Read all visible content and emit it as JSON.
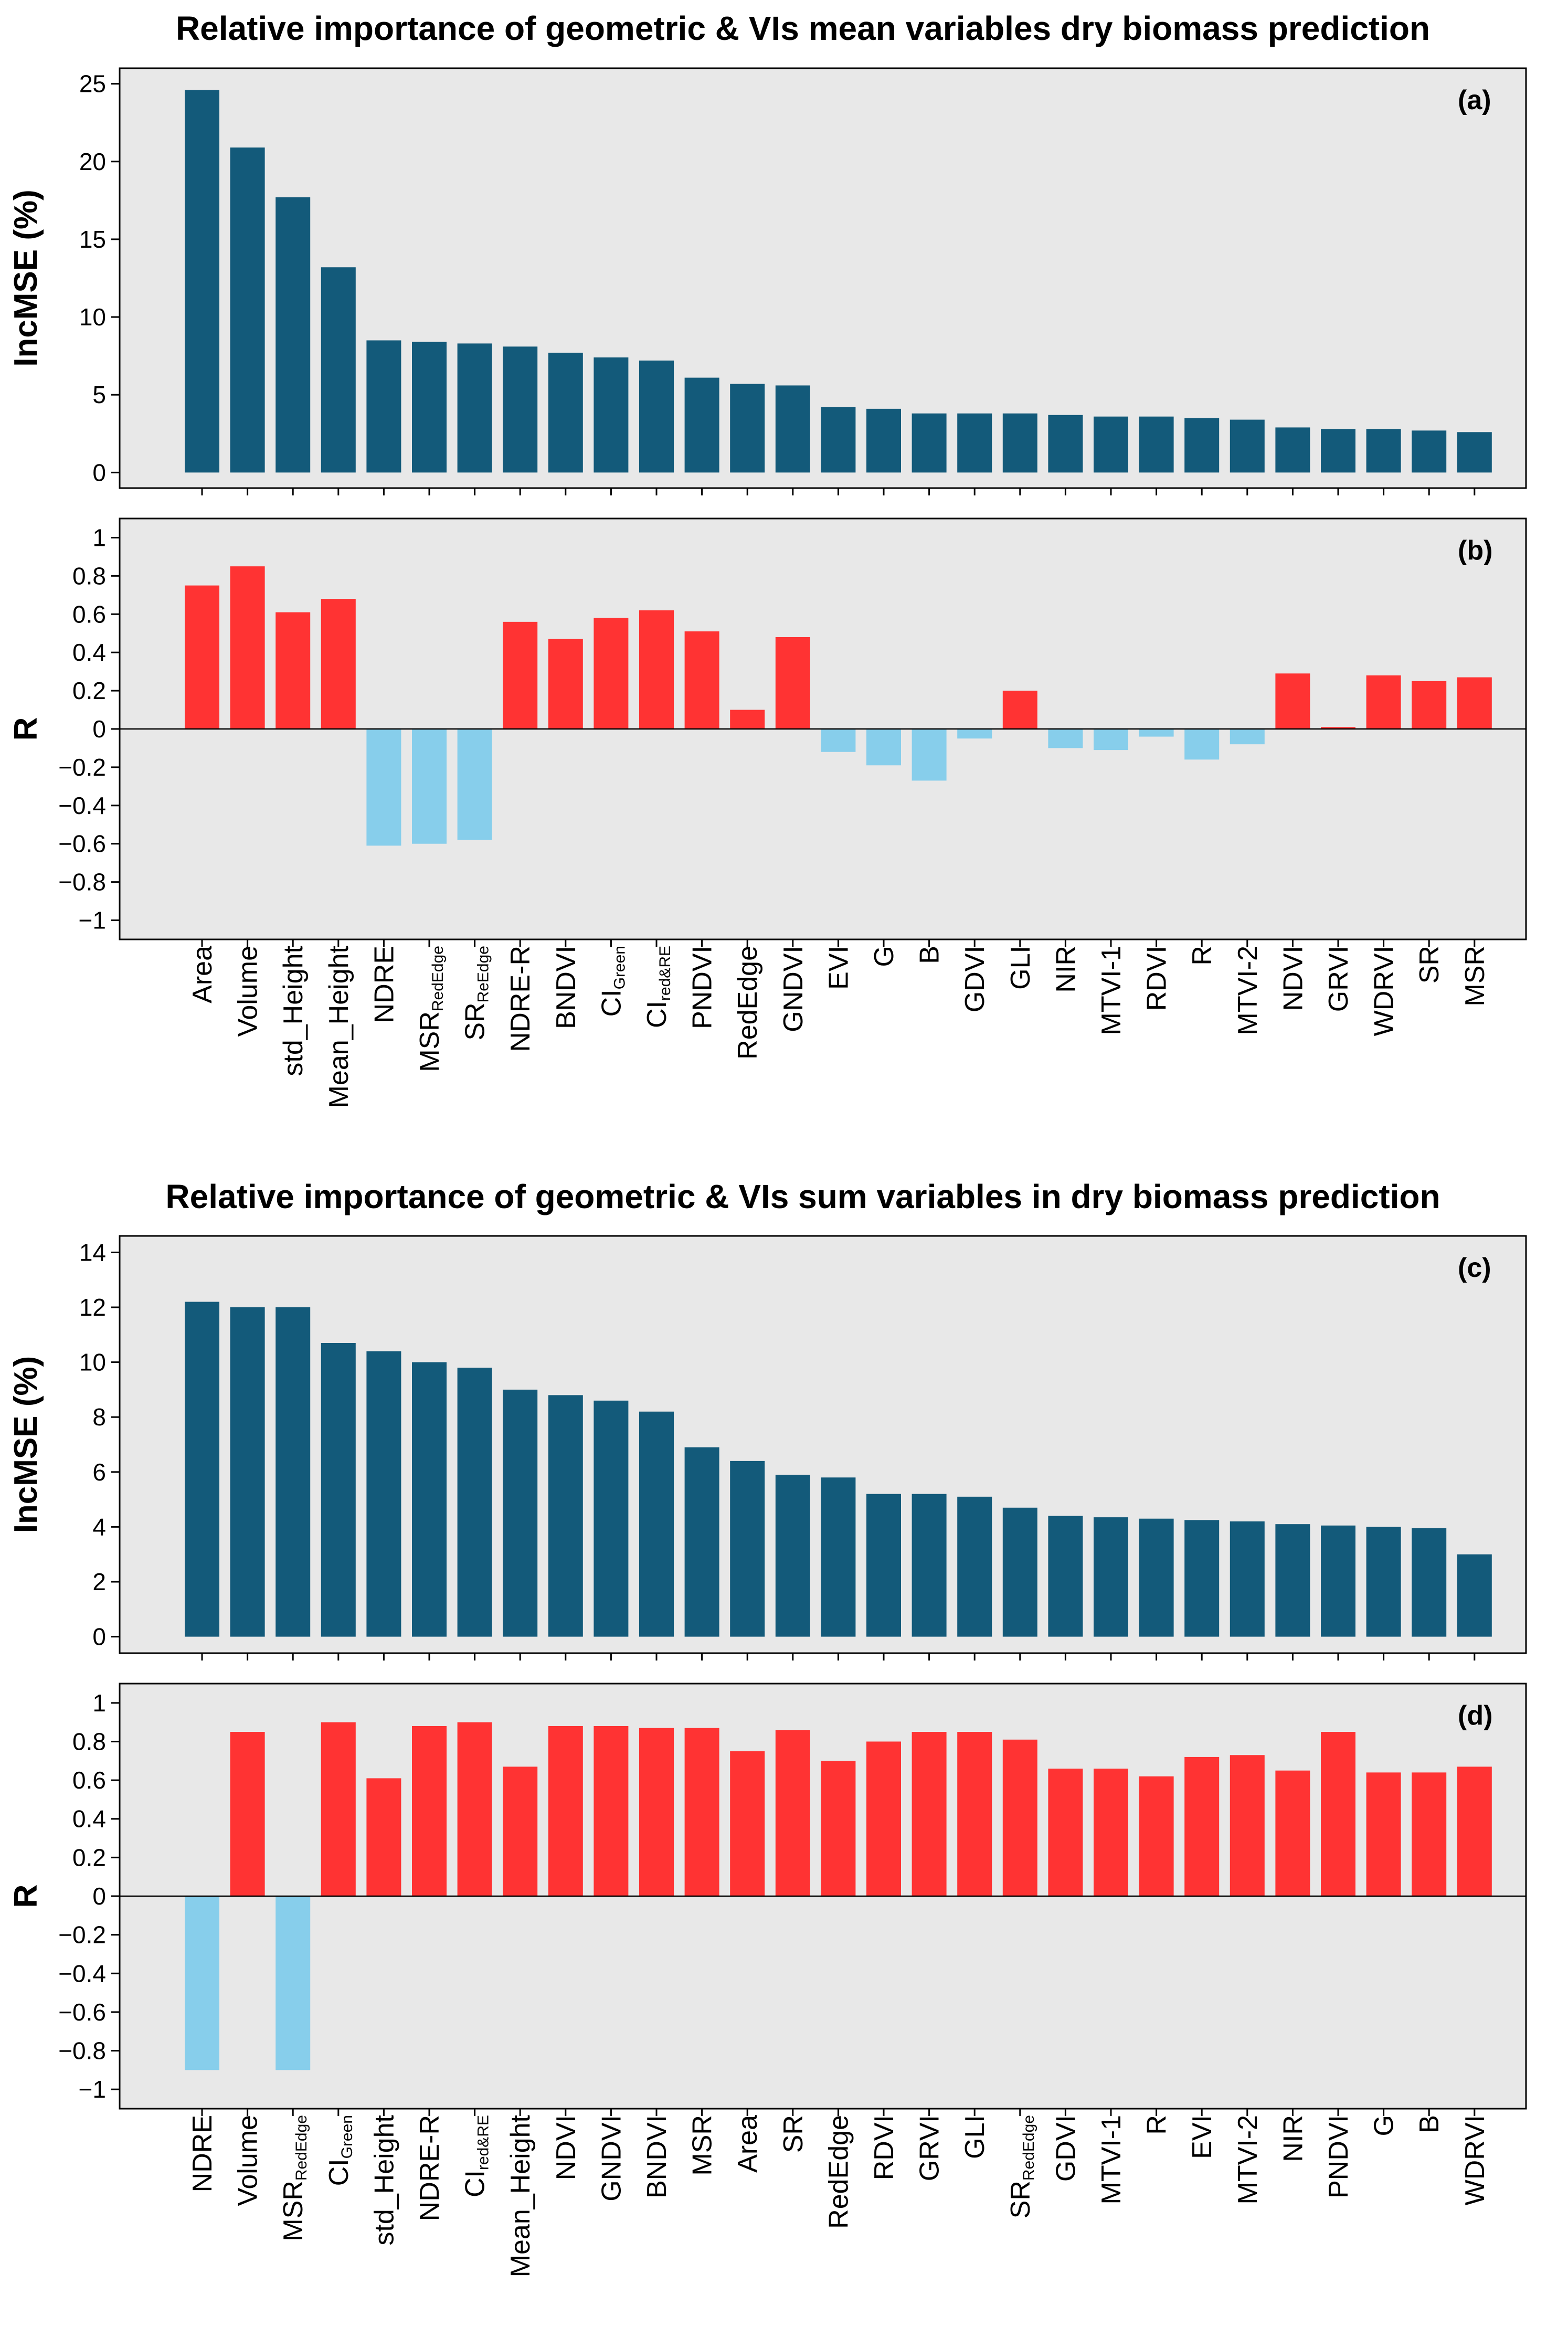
{
  "colors": {
    "importance_bar": "#135a7a",
    "positive_r": "#ff3333",
    "negative_r": "#87ceeb",
    "plot_background": "#e8e8e8"
  },
  "chart_data": [
    {
      "id": "a",
      "type": "bar",
      "title": "Relative importance of geometric & VIs mean variables dry biomass prediction",
      "panel_label": "(a)",
      "ylabel": "IncMSE (%)",
      "xlabel": "",
      "ylim": [
        -1,
        26
      ],
      "yticks": [
        0,
        5,
        10,
        15,
        20,
        25
      ],
      "ytick_labels": [
        "0",
        "5",
        "10",
        "15",
        "20",
        "25"
      ],
      "grid": false,
      "categories": [
        "Area",
        "Volume",
        "std_Height",
        "Mean_Height",
        "NDRE",
        "MSR_RedEdge",
        "SR_ReEdge",
        "NDRE-R",
        "BNDVI",
        "CI_Green",
        "CI_red&RE",
        "PNDVI",
        "RedEdge",
        "GNDVI",
        "EVI",
        "G",
        "B",
        "GDVI",
        "GLI",
        "NIR",
        "MTVI-1",
        "RDVI",
        "R",
        "MTVI-2",
        "NDVI",
        "GRVI",
        "WDRVI",
        "SR",
        "MSR"
      ],
      "category_labels": [
        {
          "main": "Area",
          "sub": ""
        },
        {
          "main": "Volume",
          "sub": ""
        },
        {
          "main": "std_Height",
          "sub": ""
        },
        {
          "main": "Mean_Height",
          "sub": ""
        },
        {
          "main": "NDRE",
          "sub": ""
        },
        {
          "main": "MSR",
          "sub": "RedEdge"
        },
        {
          "main": "SR",
          "sub": "ReEdge"
        },
        {
          "main": "NDRE-R",
          "sub": ""
        },
        {
          "main": "BNDVI",
          "sub": ""
        },
        {
          "main": "CI",
          "sub": "Green"
        },
        {
          "main": "CI",
          "sub": "red&RE"
        },
        {
          "main": "PNDVI",
          "sub": ""
        },
        {
          "main": "RedEdge",
          "sub": ""
        },
        {
          "main": "GNDVI",
          "sub": ""
        },
        {
          "main": "EVI",
          "sub": ""
        },
        {
          "main": "G",
          "sub": ""
        },
        {
          "main": "B",
          "sub": ""
        },
        {
          "main": "GDVI",
          "sub": ""
        },
        {
          "main": "GLI",
          "sub": ""
        },
        {
          "main": "NIR",
          "sub": ""
        },
        {
          "main": "MTVI-1",
          "sub": ""
        },
        {
          "main": "RDVI",
          "sub": ""
        },
        {
          "main": "R",
          "sub": ""
        },
        {
          "main": "MTVI-2",
          "sub": ""
        },
        {
          "main": "NDVI",
          "sub": ""
        },
        {
          "main": "GRVI",
          "sub": ""
        },
        {
          "main": "WDRVI",
          "sub": ""
        },
        {
          "main": "SR",
          "sub": ""
        },
        {
          "main": "MSR",
          "sub": ""
        }
      ],
      "values": [
        24.6,
        20.9,
        17.7,
        13.2,
        8.5,
        8.4,
        8.3,
        8.1,
        7.7,
        7.4,
        7.2,
        6.1,
        5.7,
        5.6,
        4.2,
        4.1,
        3.8,
        3.8,
        3.8,
        3.7,
        3.6,
        3.6,
        3.5,
        3.4,
        2.9,
        2.8,
        2.8,
        2.7,
        2.6
      ]
    },
    {
      "id": "b",
      "type": "bar",
      "panel_label": "(b)",
      "ylabel": "R",
      "xlabel": "",
      "ylim": [
        -1.1,
        1.1
      ],
      "yticks": [
        -1,
        -0.8,
        -0.6,
        -0.4,
        -0.2,
        0,
        0.2,
        0.4,
        0.6,
        0.8,
        1
      ],
      "ytick_labels": [
        "−1",
        "−0.8",
        "−0.6",
        "−0.4",
        "−0.2",
        "0",
        "0.2",
        "0.4",
        "0.6",
        "0.8",
        "1"
      ],
      "zero_line": true,
      "grid": false,
      "shares_categories_with": "a",
      "values": [
        0.75,
        0.85,
        0.61,
        0.68,
        -0.61,
        -0.6,
        -0.58,
        0.56,
        0.47,
        0.58,
        0.62,
        0.51,
        0.1,
        0.48,
        -0.12,
        -0.19,
        -0.27,
        -0.05,
        0.2,
        -0.1,
        -0.11,
        -0.04,
        -0.16,
        -0.08,
        0.29,
        0.01,
        0.28,
        0.25,
        0.27
      ]
    },
    {
      "id": "c",
      "type": "bar",
      "title": "Relative importance of geometric & VIs sum variables in dry biomass prediction",
      "panel_label": "(c)",
      "ylabel": "IncMSE (%)",
      "xlabel": "",
      "ylim": [
        -0.6,
        14.6
      ],
      "yticks": [
        0,
        2,
        4,
        6,
        8,
        10,
        12,
        14
      ],
      "ytick_labels": [
        "0",
        "2",
        "4",
        "6",
        "8",
        "10",
        "12",
        "14"
      ],
      "grid": false,
      "categories": [
        "NDRE",
        "Volume",
        "MSR_RedEdge",
        "CI_Green",
        "std_Height",
        "NDRE-R",
        "CI_red&RE",
        "Mean_Height",
        "NDVI",
        "GNDVI",
        "BNDVI",
        "MSR",
        "Area",
        "SR",
        "RedEdge",
        "RDVI",
        "GRVI",
        "GLI",
        "SR_RedEdge",
        "GDVI",
        "MTVI-1",
        "R",
        "EVI",
        "MTVI-2",
        "NIR",
        "PNDVI",
        "G",
        "B",
        "WDRVI"
      ],
      "category_labels": [
        {
          "main": "NDRE",
          "sub": ""
        },
        {
          "main": "Volume",
          "sub": ""
        },
        {
          "main": "MSR",
          "sub": "RedEdge"
        },
        {
          "main": "CI",
          "sub": "Green"
        },
        {
          "main": "std_Height",
          "sub": ""
        },
        {
          "main": "NDRE-R",
          "sub": ""
        },
        {
          "main": "CI",
          "sub": "red&RE"
        },
        {
          "main": "Mean_Height",
          "sub": ""
        },
        {
          "main": "NDVI",
          "sub": ""
        },
        {
          "main": "GNDVI",
          "sub": ""
        },
        {
          "main": "BNDVI",
          "sub": ""
        },
        {
          "main": "MSR",
          "sub": ""
        },
        {
          "main": "Area",
          "sub": ""
        },
        {
          "main": "SR",
          "sub": ""
        },
        {
          "main": "RedEdge",
          "sub": ""
        },
        {
          "main": "RDVI",
          "sub": ""
        },
        {
          "main": "GRVI",
          "sub": ""
        },
        {
          "main": "GLI",
          "sub": ""
        },
        {
          "main": "SR",
          "sub": "RedEdge"
        },
        {
          "main": "GDVI",
          "sub": ""
        },
        {
          "main": "MTVI-1",
          "sub": ""
        },
        {
          "main": "R",
          "sub": ""
        },
        {
          "main": "EVI",
          "sub": ""
        },
        {
          "main": "MTVI-2",
          "sub": ""
        },
        {
          "main": "NIR",
          "sub": ""
        },
        {
          "main": "PNDVI",
          "sub": ""
        },
        {
          "main": "G",
          "sub": ""
        },
        {
          "main": "B",
          "sub": ""
        },
        {
          "main": "WDRVI",
          "sub": ""
        }
      ],
      "values": [
        12.2,
        12.0,
        12.0,
        10.7,
        10.4,
        10.0,
        9.8,
        9.0,
        8.8,
        8.6,
        8.2,
        6.9,
        6.4,
        5.9,
        5.8,
        5.2,
        5.2,
        5.1,
        4.7,
        4.4,
        4.35,
        4.3,
        4.25,
        4.2,
        4.1,
        4.05,
        4.0,
        3.95,
        3.0
      ]
    },
    {
      "id": "d",
      "type": "bar",
      "panel_label": "(d)",
      "ylabel": "R",
      "xlabel": "",
      "ylim": [
        -1.1,
        1.1
      ],
      "yticks": [
        -1,
        -0.8,
        -0.6,
        -0.4,
        -0.2,
        0,
        0.2,
        0.4,
        0.6,
        0.8,
        1
      ],
      "ytick_labels": [
        "−1",
        "−0.8",
        "−0.6",
        "−0.4",
        "−0.2",
        "0",
        "0.2",
        "0.4",
        "0.6",
        "0.8",
        "1"
      ],
      "zero_line": true,
      "grid": false,
      "shares_categories_with": "c",
      "values": [
        -0.9,
        0.85,
        -0.9,
        0.9,
        0.61,
        0.88,
        0.9,
        0.67,
        0.88,
        0.88,
        0.87,
        0.87,
        0.75,
        0.86,
        0.7,
        0.8,
        0.85,
        0.85,
        0.81,
        0.66,
        0.66,
        0.62,
        0.72,
        0.73,
        0.65,
        0.85,
        0.64,
        0.64,
        0.67
      ]
    }
  ]
}
